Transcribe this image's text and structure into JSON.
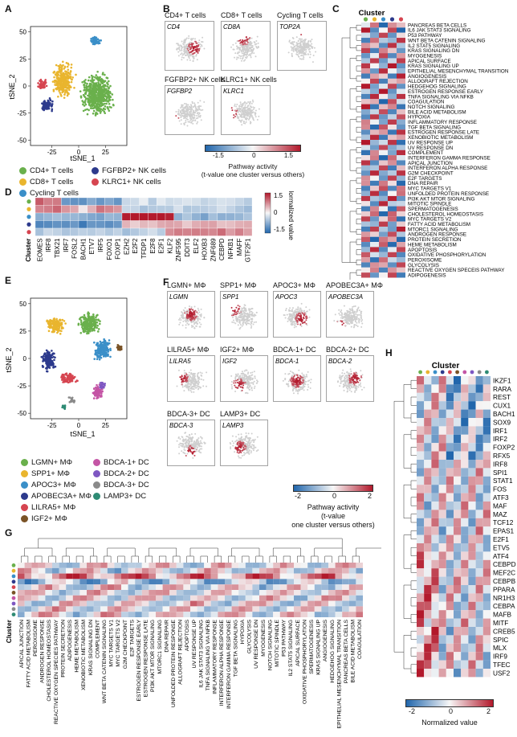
{
  "panel_labels": {
    "A": "A",
    "B": "B",
    "C": "C",
    "D": "D",
    "E": "E",
    "F": "F",
    "G": "G",
    "H": "H"
  },
  "colors": {
    "green": "#6ab04c",
    "yellow": "#e9b52e",
    "blue": "#3a8fc8",
    "navy": "#2d3a8c",
    "red": "#d64550",
    "brown": "#7a5326",
    "pink": "#c455a5",
    "purple": "#7e57c2",
    "teal": "#2e8b74",
    "map_low": "#2166ac",
    "map_mid": "#f7f7f7",
    "map_high": "#b2182b"
  },
  "panelA": {
    "xlabel": "tSNE_1",
    "ylabel": "tSNE_2",
    "xticks": [
      "-25",
      "0",
      "25"
    ],
    "yticks": [
      "50",
      "25",
      "0",
      "-25",
      "-50"
    ],
    "legend": [
      {
        "label": "CD4+ T cells",
        "color": "#6ab04c"
      },
      {
        "label": "FGFBP2+ NK cells",
        "color": "#2d3a8c"
      },
      {
        "label": "CD8+ T cells",
        "color": "#e9b52e"
      },
      {
        "label": "KLRC1+ NK cells",
        "color": "#d64550"
      },
      {
        "label": "Cycling T cells",
        "color": "#3a8fc8"
      }
    ]
  },
  "panelB": {
    "maps": [
      {
        "title": "CD4+ T cells",
        "gene": "CD4"
      },
      {
        "title": "CD8+ T cells",
        "gene": "CD8A"
      },
      {
        "title": "Cycling T cells",
        "gene": "TOP2A"
      },
      {
        "title": "FGFBP2+ NK cells",
        "gene": "FGFBP2"
      },
      {
        "title": "KLRC1+ NK cells",
        "gene": "KLRC1"
      }
    ],
    "colorbar_ticks": [
      "-1.5",
      "0",
      "1.5"
    ],
    "colorbar_title": "Pathway activity",
    "colorbar_subtitle": "(t-value one cluster versus others)"
  },
  "panelC": {
    "title": "Cluster",
    "pathways": [
      "PANCREAS BETA CELLS",
      "IL6 JAK STAT3 SIGNALING",
      "P53 PATHWAY",
      "WNT BETA CATENIN SIGNALING",
      "IL2 STAT5 SIGNALING",
      "KRAS SIGNALING DN",
      "MYOGENESIS",
      "APICAL SURFACE",
      "KRAS SIGNALING UP",
      "EPITHELIAL MESENCHYMAL TRANSITION",
      "ANGIOGENESIS",
      "ALLOGRAFT REJECTION",
      "HEDGEHOG SIGNALING",
      "ESTROGEN RESPONSE EARLY",
      "TNFA SIGNALING VIA NFKB",
      "COAGULATION",
      "NOTCH SIGNALING",
      "BILE ACID METABOLISM",
      "HYPOXIA",
      "INFLAMMATORY RESPONSE",
      "TGF BETA SIGNALING",
      "ESTROGEN RESPONSE LATE",
      "XENOBIOTIC METABOLISM",
      "UV RESPONSE UP",
      "UV RESPONSE DN",
      "COMPLEMENT",
      "INTERFERON GAMMA RESPONSE",
      "APICAL JUNCTION",
      "INTERFERON ALPHA RESPONSE",
      "G2M CHECKPOINT",
      "E2F TARGETS",
      "DNA REPAIR",
      "MYC TARGETS V1",
      "UNFOLDED PROTEIN RESPONSE",
      "PI3K AKT MTOR SIGNALING",
      "MITOTIC SPINDLE",
      "SPERMATOGENESIS",
      "CHOLESTEROL HOMEOSTASIS",
      "MYC TARGETS V2",
      "FATTY ACID METABOLISM",
      "MTORC1 SIGNALING",
      "ANDROGEN RESPONSE",
      "PROTEIN SECRETION",
      "HEME METABOLISM",
      "APOPTOSIS",
      "OXIDATIVE PHOSPHORYLATION",
      "PEROXISOME",
      "GLYCOLYSIS",
      "REACTIVE OXYGEN SPECEIS PATHWAY",
      "ADIPOGENESIS"
    ]
  },
  "panelD": {
    "cluster_label": "Cluster",
    "genes": [
      "EOMES",
      "IRF8",
      "TBX21",
      "IRF7",
      "FOSL2",
      "BACH1",
      "ETV7",
      "IRF5",
      "FOXO1",
      "FOXP1",
      "EZH2",
      "E2F2",
      "TFDP1",
      "E2F8",
      "E2F1",
      "KLF2",
      "ZNF595",
      "DDIT3",
      "ELF2",
      "HOXB3",
      "ZNF689",
      "CEBPD",
      "NFKB1",
      "MAFF",
      "GTF2F1"
    ],
    "colorbar_ticks": [
      "1.5",
      "0",
      "-1.5"
    ],
    "colorbar_title": "Normalized value"
  },
  "panelE": {
    "xlabel": "tSNE_1",
    "ylabel": "tSNE_2",
    "xticks": [
      "-25",
      "0",
      "25"
    ],
    "yticks": [
      "50",
      "25",
      "0",
      "-25",
      "-50"
    ],
    "legend": [
      {
        "label": "LGMN+ MΦ",
        "color": "#6ab04c"
      },
      {
        "label": "BDCA-1+ DC",
        "color": "#c455a5"
      },
      {
        "label": "SPP1+ MΦ",
        "color": "#e9b52e"
      },
      {
        "label": "BDCA-2+ DC",
        "color": "#7e57c2"
      },
      {
        "label": "APOC3+ MΦ",
        "color": "#3a8fc8"
      },
      {
        "label": "BDCA-3+ DC",
        "color": "#8a8a8a"
      },
      {
        "label": "APOBEC3A+ MΦ",
        "color": "#2d3a8c"
      },
      {
        "label": "LAMP3+ DC",
        "color": "#2e8b74"
      },
      {
        "label": "LILRA5+ MΦ",
        "color": "#d64550"
      },
      {
        "label": "IGF2+ MΦ",
        "color": "#7a5326"
      }
    ]
  },
  "panelF": {
    "maps": [
      {
        "title": "LGMN+ MΦ",
        "gene": "LGMN"
      },
      {
        "title": "SPP1+ MΦ",
        "gene": "SPP1"
      },
      {
        "title": "APOC3+ MΦ",
        "gene": "APOC3"
      },
      {
        "title": "APOBEC3A+ MΦ",
        "gene": "APOBEC3A"
      },
      {
        "title": "LILRA5+ MΦ",
        "gene": "LILRA5"
      },
      {
        "title": "IGF2+ MΦ",
        "gene": "IGF2"
      },
      {
        "title": "BDCA-1+ DC",
        "gene": "BDCA-1"
      },
      {
        "title": "BDCA-2+ DC",
        "gene": "BDCA-2"
      },
      {
        "title": "BDCA-3+ DC",
        "gene": "BDCA-3"
      },
      {
        "title": "LAMP3+ DC",
        "gene": "LAMP3"
      }
    ],
    "colorbar_ticks": [
      "-2",
      "0",
      "2"
    ],
    "colorbar_title": "Pathway activity",
    "colorbar_subtitle": "(t-value",
    "colorbar_subtitle2": "one cluster versus others)"
  },
  "panelG": {
    "cluster_label": "Cluster",
    "pathways": [
      "APICAL JUNCTION",
      "FATTY ACID METABOLISM",
      "PEROXISOME",
      "ANDROGEN RESPONSE",
      "CHOLESTEROL HOMEOSTASIS",
      "REACTIVE OXYGEN SPECIES PATHWAY",
      "PROTEIN SECRETION",
      "ADIPOGENESIS",
      "HEME METABOLISM",
      "XENOBIOTIC METABOLISM",
      "KRAS SIGNALING DN",
      "COMPLEMENT",
      "WNT BETA CATENIN SIGNALING",
      "MYC TARGETS V1",
      "MYC TARGETS V2",
      "G2M CHECKPOINT",
      "E2F TARGETS",
      "ESTROGEN RESPONSE EARLY",
      "ESTROGEN RESPONSE LATE",
      "PI3K AKT MTOR SIGNALING",
      "MTORC1 SIGNALING",
      "DNA REPAIR",
      "UNFOLDED PROTEIN RESPONSE",
      "ALLOGRAFT REJECTION",
      "APOPTOSIS",
      "UV RESPONSE UP",
      "IL6 JAK STAT3 SIGNALING",
      "TNFA SIGNALING VIA NFKB",
      "INFLAMMATORY RESPONSE",
      "INTERFERON ALPHA RESPONSE",
      "INTERFERON GAMMA RESPONSE",
      "TGF BETA SIGNALING",
      "HYPOXIA",
      "GLYCOLYSIS",
      "UV RESPONSE DN",
      "MYOGENESIS",
      "NOTCH SIGNALING",
      "MITOTIC SPINDLE",
      "P53 PATHWAY",
      "IL2 STAT5 SIGNALING",
      "APICAL SURFACE",
      "OXIDATIVE PHOSPHORYLATION",
      "SPERMATOGENESIS",
      "KRAS SIGNALING UP",
      "ANGIOGENESIS",
      "HEDGEHOG SIGNALING",
      "EPITHELIAL MESENCHYMAL TRANSITION",
      "PANCREAS BETA CELLS",
      "BILE ACID METABOLISM",
      "COAGULATION"
    ]
  },
  "panelH": {
    "title": "Cluster",
    "genes": [
      "IKZF1",
      "RARA",
      "REST",
      "CUX1",
      "BACH1",
      "SOX9",
      "IRF1",
      "IRF2",
      "FOXP2",
      "RFX5",
      "IRF8",
      "SPI1",
      "STAT1",
      "FOS",
      "ATF3",
      "MAF",
      "MAZ",
      "TCF12",
      "EPAS1",
      "E2F1",
      "ETV5",
      "ATF4",
      "CEBPD",
      "MEF2C",
      "CEBPB",
      "PPARA",
      "NR1H3",
      "CEBPA",
      "MAFB",
      "MITF",
      "CREB5",
      "SPIC",
      "MLX",
      "IRF9",
      "TFEC",
      "USF2"
    ],
    "colorbar_ticks": [
      "-2",
      "0",
      "2"
    ],
    "colorbar_title": "Normalized value"
  }
}
